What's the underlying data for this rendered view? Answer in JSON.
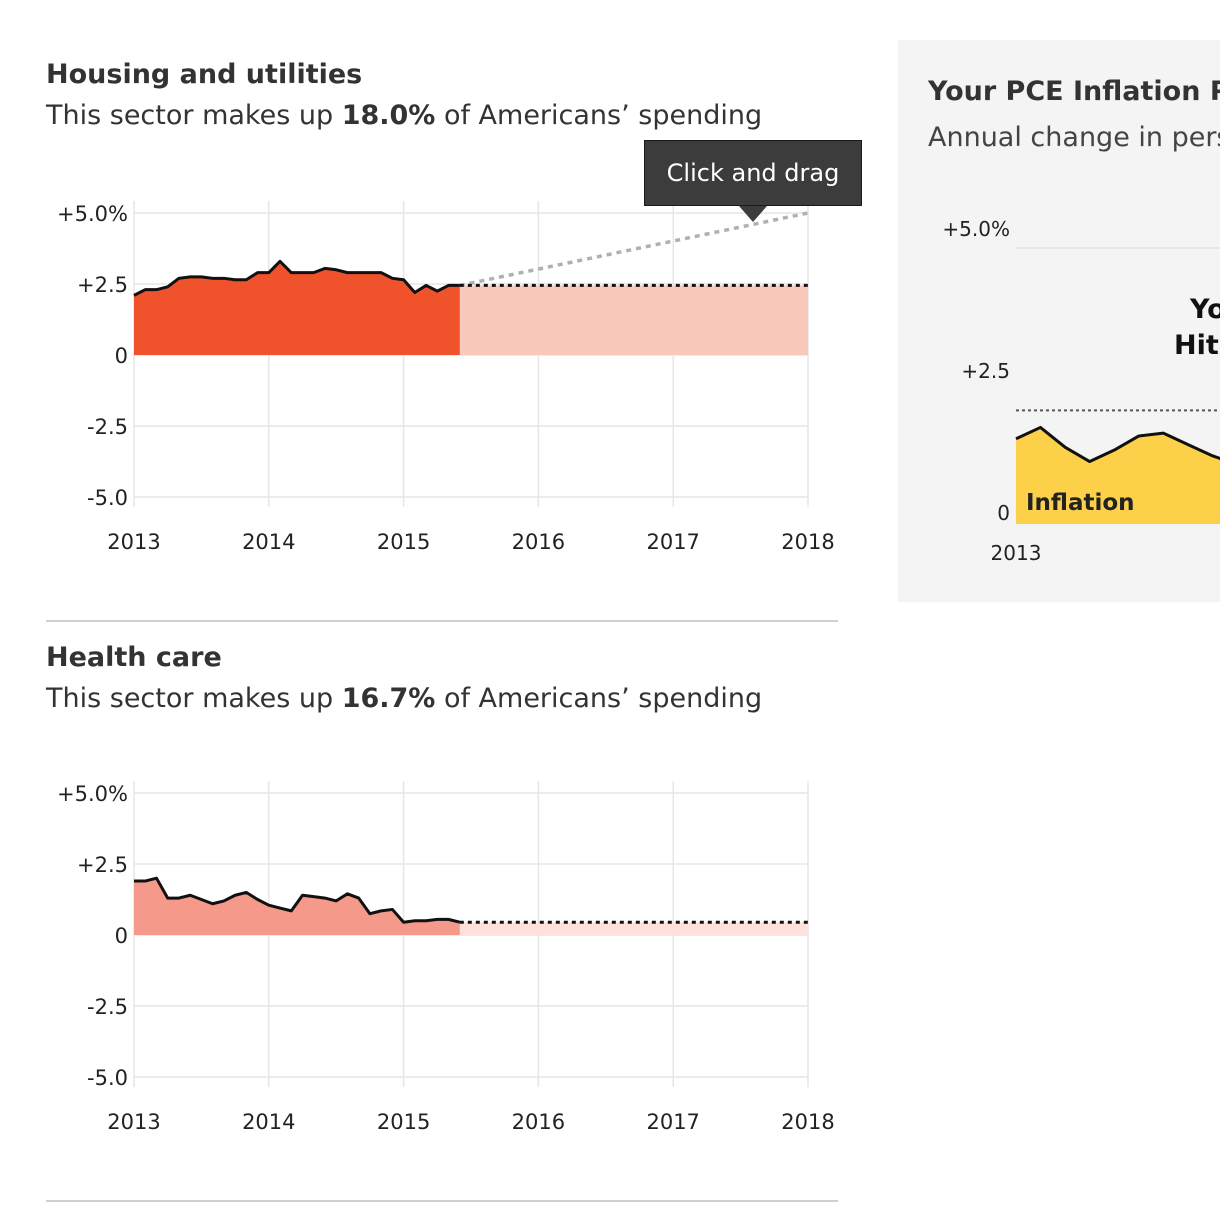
{
  "sections": [
    {
      "title": "Housing and utilities",
      "subtitle_prefix": "This sector makes up ",
      "share": "18.0%",
      "subtitle_suffix": " of Americans’ spending"
    },
    {
      "title": "Health care",
      "subtitle_prefix": "This sector makes up ",
      "share": "16.7%",
      "subtitle_suffix": " of Americans’ spending"
    }
  ],
  "tooltip": {
    "label": "Click and drag"
  },
  "side_panel": {
    "title": "Your PCE Inflation Pa",
    "subtitle": "Annual change in pers",
    "y_ticks": [
      "+5.0%",
      "+2.5",
      "0"
    ],
    "x_tick": "2013",
    "area_label": "Inflation",
    "headline_line1": "Yo",
    "headline_line2": "Hit"
  },
  "colors": {
    "housing": "#f0532b",
    "housing_projection": "#f9cabc",
    "health": "#f5998a",
    "health_projection": "#fde1da",
    "inflation": "#fdd04a",
    "grid": "#e6e6e6"
  },
  "chart_data": [
    {
      "type": "area",
      "title": "Housing and utilities",
      "y_tick_labels": [
        "+5.0%",
        "+2.5",
        "0",
        "-2.5",
        "-5.0"
      ],
      "y_ticks": [
        5.0,
        2.5,
        0,
        -2.5,
        -5.0
      ],
      "x_tick_labels": [
        "2013",
        "2014",
        "2015",
        "2016",
        "2017",
        "2018"
      ],
      "x_ticks": [
        2013,
        2014,
        2015,
        2016,
        2017,
        2018
      ],
      "xlim": [
        2013,
        2018
      ],
      "ylim": [
        -5.0,
        5.0
      ],
      "grid": true,
      "x": [
        2013.0,
        2013.083,
        2013.167,
        2013.25,
        2013.333,
        2013.417,
        2013.5,
        2013.583,
        2013.667,
        2013.75,
        2013.833,
        2013.917,
        2014.0,
        2014.083,
        2014.167,
        2014.25,
        2014.333,
        2014.417,
        2014.5,
        2014.583,
        2014.667,
        2014.75,
        2014.833,
        2014.917,
        2015.0,
        2015.083,
        2015.167,
        2015.25,
        2015.333,
        2015.417
      ],
      "values": [
        2.1,
        2.3,
        2.3,
        2.4,
        2.7,
        2.75,
        2.75,
        2.7,
        2.7,
        2.65,
        2.65,
        2.9,
        2.9,
        3.3,
        2.9,
        2.9,
        2.9,
        3.05,
        3.0,
        2.9,
        2.9,
        2.9,
        2.9,
        2.7,
        2.65,
        2.2,
        2.45,
        2.25,
        2.45,
        2.45
      ],
      "projection": {
        "x": [
          2015.417,
          2018.0
        ],
        "values": [
          2.45,
          2.45
        ]
      },
      "drag_guide": {
        "x": [
          2015.417,
          2018.0
        ],
        "values": [
          2.45,
          5.0
        ]
      }
    },
    {
      "type": "area",
      "title": "Health care",
      "y_tick_labels": [
        "+5.0%",
        "+2.5",
        "0",
        "-2.5",
        "-5.0"
      ],
      "y_ticks": [
        5.0,
        2.5,
        0,
        -2.5,
        -5.0
      ],
      "x_tick_labels": [
        "2013",
        "2014",
        "2015",
        "2016",
        "2017",
        "2018"
      ],
      "x_ticks": [
        2013,
        2014,
        2015,
        2016,
        2017,
        2018
      ],
      "xlim": [
        2013,
        2018
      ],
      "ylim": [
        -5.0,
        5.0
      ],
      "grid": true,
      "x": [
        2013.0,
        2013.083,
        2013.167,
        2013.25,
        2013.333,
        2013.417,
        2013.5,
        2013.583,
        2013.667,
        2013.75,
        2013.833,
        2013.917,
        2014.0,
        2014.083,
        2014.167,
        2014.25,
        2014.333,
        2014.417,
        2014.5,
        2014.583,
        2014.667,
        2014.75,
        2014.833,
        2014.917,
        2015.0,
        2015.083,
        2015.167,
        2015.25,
        2015.333,
        2015.417
      ],
      "values": [
        1.9,
        1.9,
        2.0,
        1.3,
        1.3,
        1.4,
        1.25,
        1.1,
        1.2,
        1.4,
        1.5,
        1.25,
        1.05,
        0.95,
        0.85,
        1.4,
        1.35,
        1.3,
        1.2,
        1.45,
        1.3,
        0.75,
        0.85,
        0.9,
        0.45,
        0.5,
        0.5,
        0.55,
        0.55,
        0.45
      ],
      "projection": {
        "x": [
          2015.417,
          2018.0
        ],
        "values": [
          0.45,
          0.45
        ]
      }
    },
    {
      "type": "area",
      "title": "Your PCE Inflation Pa",
      "y_tick_labels": [
        "+5.0%",
        "+2.5",
        "0"
      ],
      "y_ticks": [
        5.0,
        2.5,
        0
      ],
      "x_tick_labels": [
        "2013"
      ],
      "series": [
        {
          "name": "Inflation",
          "x": [
            2013.0,
            2013.083,
            2013.167,
            2013.25,
            2013.333,
            2013.417,
            2013.5,
            2013.583,
            2013.667,
            2013.75,
            2013.833,
            2013.917
          ],
          "values": [
            1.5,
            1.7,
            1.35,
            1.1,
            1.3,
            1.55,
            1.6,
            1.4,
            1.2,
            1.05,
            1.3,
            1.45
          ]
        }
      ],
      "reference_line": 2.0,
      "xlim": [
        2013,
        2014.5
      ],
      "ylim": [
        0,
        5.0
      ]
    }
  ]
}
